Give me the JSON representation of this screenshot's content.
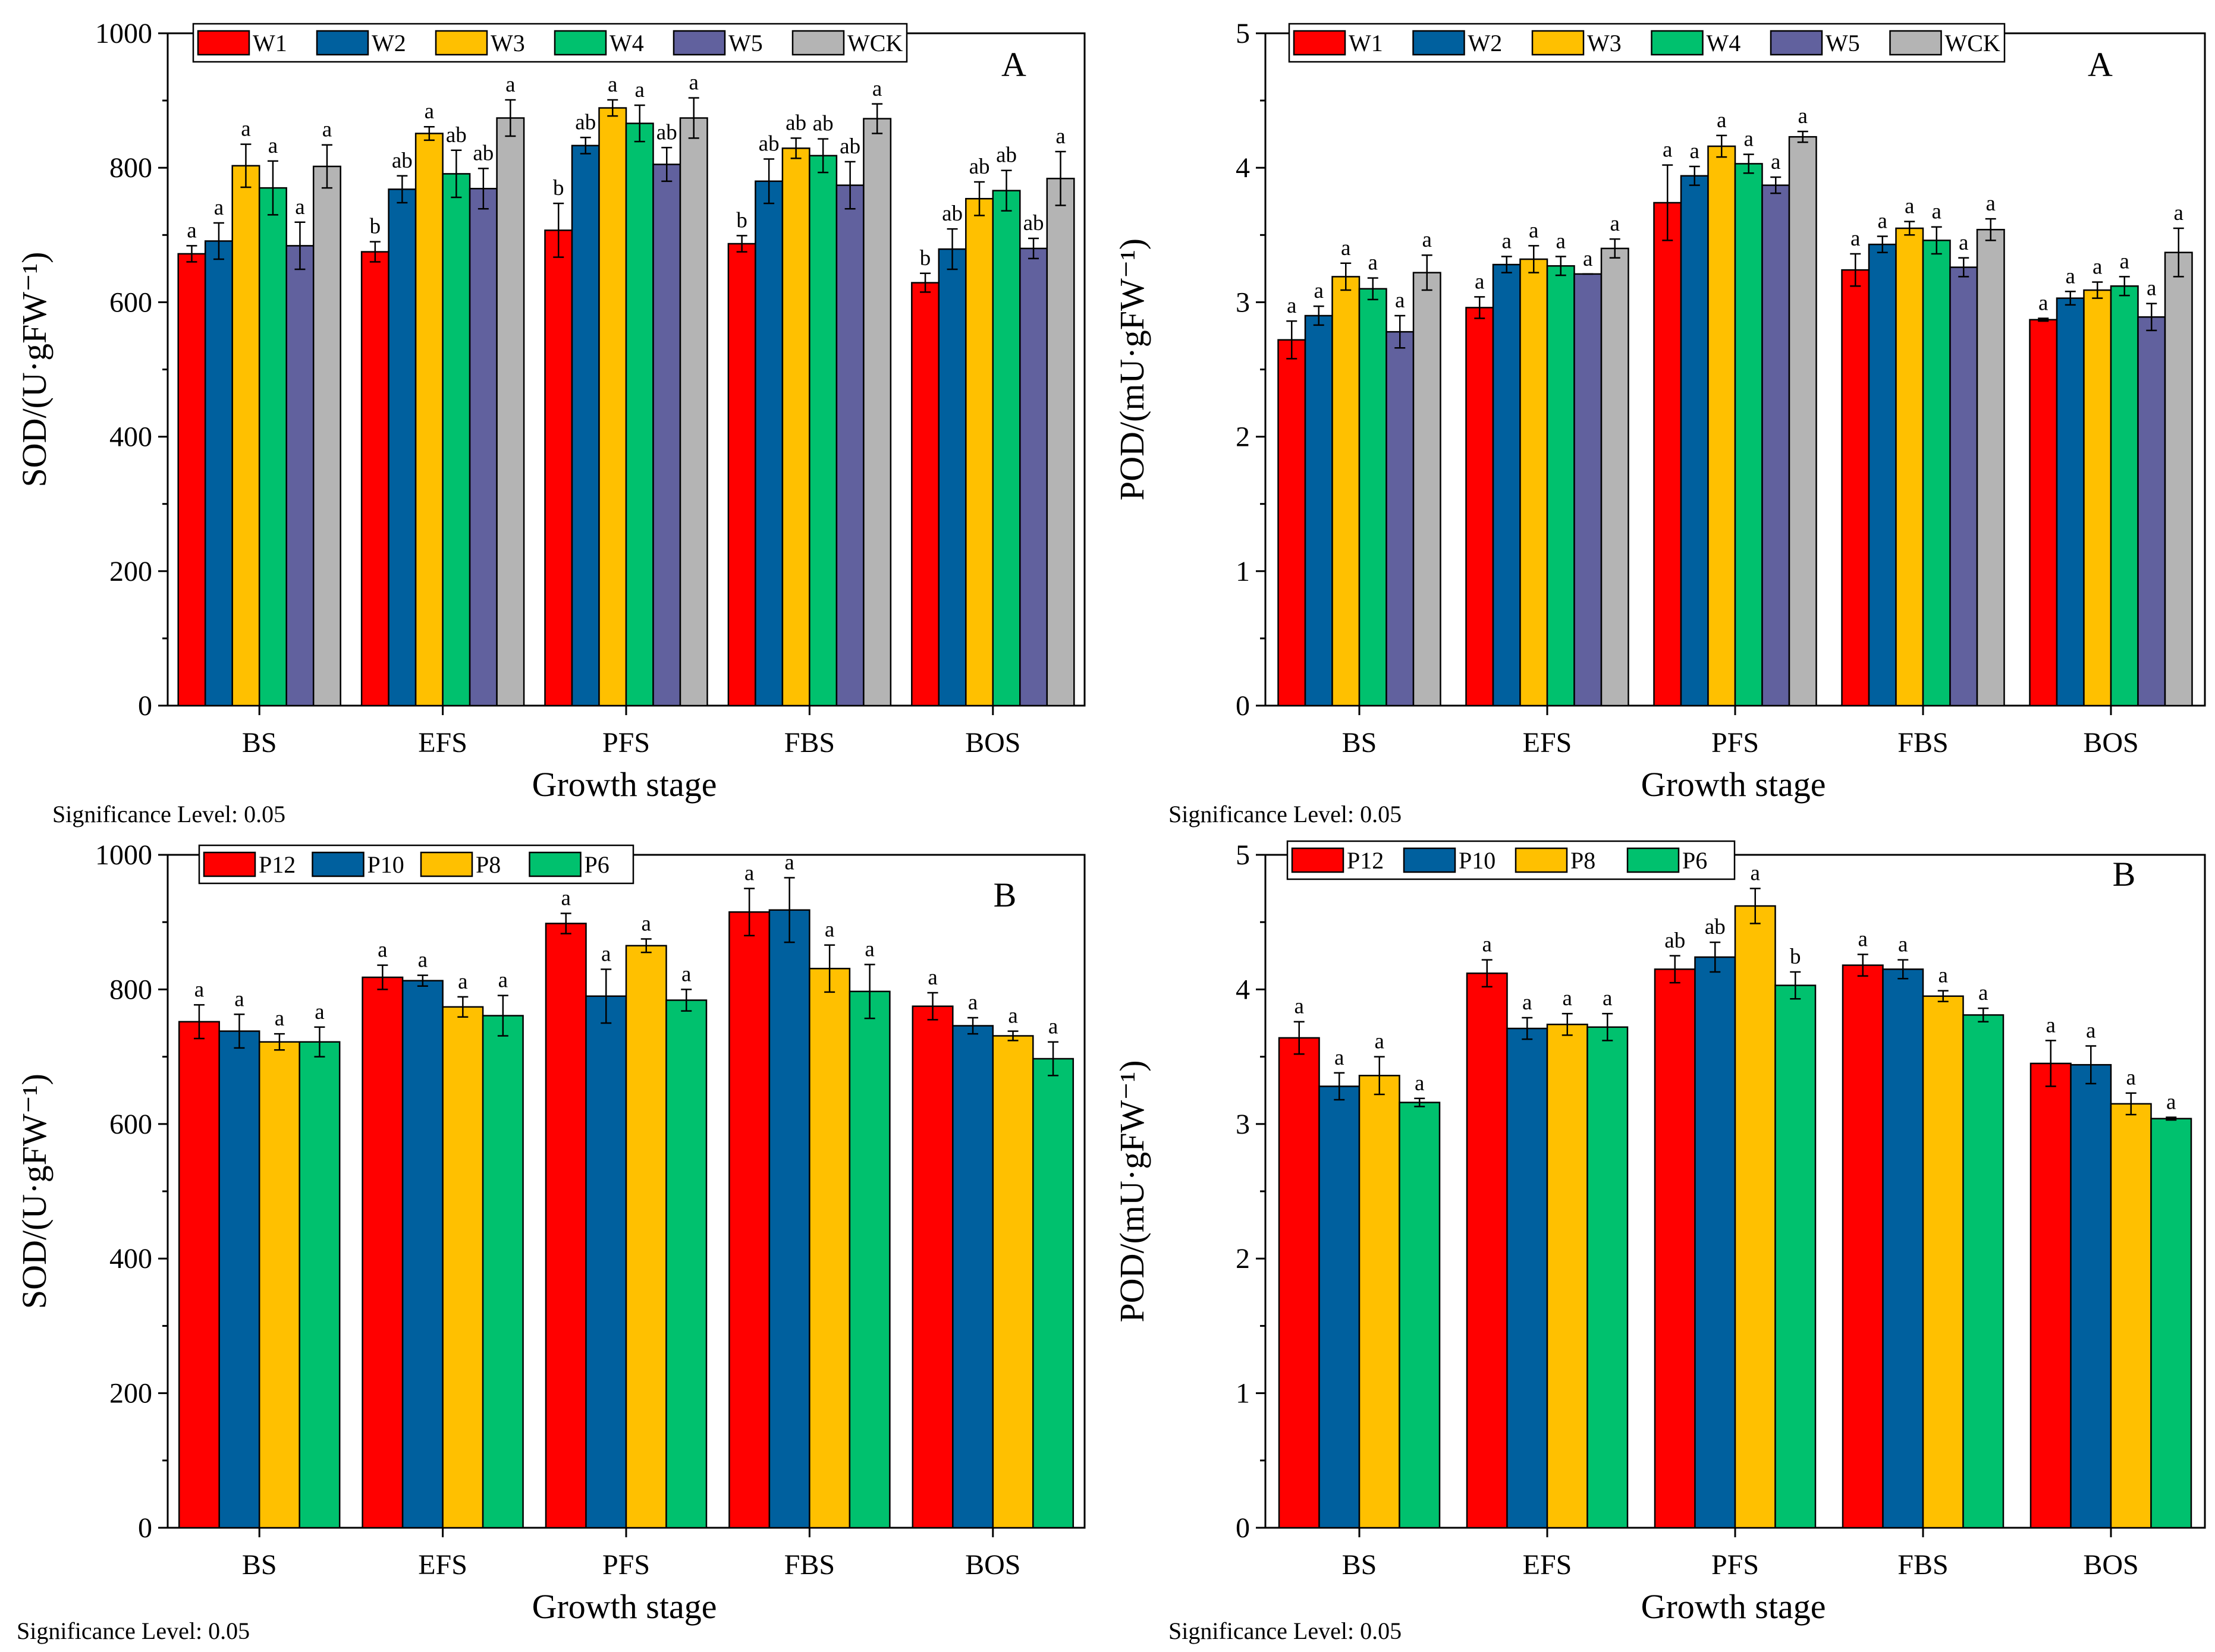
{
  "colors": {
    "W1": "#ff0000",
    "W2": "#00609e",
    "W3": "#ffc000",
    "W4": "#00c16e",
    "W5": "#61619e",
    "WCK": "#b4b4b4",
    "P12": "#ff0000",
    "P10": "#00609e",
    "P8": "#ffc000",
    "P6": "#00c16e"
  },
  "chart_data": [
    {
      "type": "bar",
      "panel_label": "A",
      "xlabel": "Growth stage",
      "ylabel": "SOD/(U·gFW⁻¹)",
      "ylim": [
        0,
        1000
      ],
      "yticks": [
        "0",
        "200",
        "400",
        "600",
        "800",
        "1000"
      ],
      "significance_note": "Significance Level: 0.05",
      "categories": [
        "BS",
        "EFS",
        "PFS",
        "FBS",
        "BOS"
      ],
      "legend": [
        "W1",
        "W2",
        "W3",
        "W4",
        "W5",
        "WCK"
      ],
      "series": [
        {
          "name": "W1",
          "values": [
            672,
            675,
            707,
            687,
            629
          ],
          "errors": [
            12,
            15,
            40,
            12,
            14
          ],
          "letters": [
            "a",
            "b",
            "b",
            "b",
            "b"
          ]
        },
        {
          "name": "W2",
          "values": [
            691,
            768,
            833,
            780,
            679
          ],
          "errors": [
            27,
            20,
            12,
            33,
            30
          ],
          "letters": [
            "a",
            "ab",
            "ab",
            "ab",
            "ab"
          ]
        },
        {
          "name": "W3",
          "values": [
            803,
            851,
            889,
            829,
            754
          ],
          "errors": [
            32,
            10,
            12,
            15,
            25
          ],
          "letters": [
            "a",
            "a",
            "a",
            "ab",
            "ab"
          ]
        },
        {
          "name": "W4",
          "values": [
            770,
            791,
            866,
            818,
            766
          ],
          "errors": [
            40,
            35,
            27,
            25,
            30
          ],
          "letters": [
            "a",
            "ab",
            "a",
            "ab",
            "ab"
          ]
        },
        {
          "name": "W5",
          "values": [
            684,
            769,
            805,
            774,
            680
          ],
          "errors": [
            35,
            30,
            25,
            35,
            15
          ],
          "letters": [
            "a",
            "ab",
            "ab",
            "ab",
            "ab"
          ]
        },
        {
          "name": "WCK",
          "values": [
            802,
            874,
            874,
            873,
            784
          ],
          "errors": [
            32,
            27,
            30,
            22,
            40
          ],
          "letters": [
            "a",
            "a",
            "a",
            "a",
            "a"
          ]
        }
      ]
    },
    {
      "type": "bar",
      "panel_label": "A",
      "xlabel": "Growth stage",
      "ylabel": "POD/(mU·gFW⁻¹)",
      "ylim": [
        0,
        5
      ],
      "yticks": [
        "0",
        "1",
        "2",
        "3",
        "4",
        "5"
      ],
      "significance_note": "Significance Level: 0.05",
      "categories": [
        "BS",
        "EFS",
        "PFS",
        "FBS",
        "BOS"
      ],
      "legend": [
        "W1",
        "W2",
        "W3",
        "W4",
        "W5",
        "WCK"
      ],
      "series": [
        {
          "name": "W1",
          "values": [
            2.72,
            2.96,
            3.74,
            3.24,
            2.87
          ],
          "errors": [
            0.14,
            0.08,
            0.28,
            0.12,
            0.01
          ],
          "letters": [
            "a",
            "a",
            "a",
            "a",
            "a"
          ]
        },
        {
          "name": "W2",
          "values": [
            2.9,
            3.28,
            3.94,
            3.43,
            3.03
          ],
          "errors": [
            0.07,
            0.06,
            0.07,
            0.06,
            0.05
          ],
          "letters": [
            "a",
            "a",
            "a",
            "a",
            "a"
          ]
        },
        {
          "name": "W3",
          "values": [
            3.19,
            3.32,
            4.16,
            3.55,
            3.09
          ],
          "errors": [
            0.1,
            0.1,
            0.08,
            0.05,
            0.06
          ],
          "letters": [
            "a",
            "a",
            "a",
            "a",
            "a"
          ]
        },
        {
          "name": "W4",
          "values": [
            3.1,
            3.27,
            4.03,
            3.46,
            3.12
          ],
          "errors": [
            0.08,
            0.07,
            0.07,
            0.1,
            0.07
          ],
          "letters": [
            "a",
            "a",
            "a",
            "a",
            "a"
          ]
        },
        {
          "name": "W5",
          "values": [
            2.78,
            3.21,
            3.87,
            3.26,
            2.89
          ],
          "errors": [
            0.12,
            0.0,
            0.06,
            0.07,
            0.1
          ],
          "letters": [
            "a",
            "a",
            "a",
            "a",
            "a"
          ]
        },
        {
          "name": "WCK",
          "values": [
            3.22,
            3.4,
            4.23,
            3.54,
            3.37
          ],
          "errors": [
            0.13,
            0.07,
            0.04,
            0.08,
            0.18
          ],
          "letters": [
            "a",
            "a",
            "a",
            "a",
            "a"
          ]
        }
      ]
    },
    {
      "type": "bar",
      "panel_label": "B",
      "xlabel": "Growth stage",
      "ylabel": "SOD/(U·gFW⁻¹)",
      "ylim": [
        0,
        1000
      ],
      "yticks": [
        "0",
        "200",
        "400",
        "600",
        "800",
        "1000"
      ],
      "significance_note": "Significance Level: 0.05",
      "categories": [
        "BS",
        "EFS",
        "PFS",
        "FBS",
        "BOS"
      ],
      "legend": [
        "P12",
        "P10",
        "P8",
        "P6"
      ],
      "series": [
        {
          "name": "P12",
          "values": [
            752,
            818,
            898,
            915,
            775
          ],
          "errors": [
            25,
            18,
            15,
            35,
            20
          ],
          "letters": [
            "a",
            "a",
            "a",
            "a",
            "a"
          ]
        },
        {
          "name": "P10",
          "values": [
            738,
            813,
            790,
            918,
            746
          ],
          "errors": [
            25,
            8,
            40,
            48,
            12
          ],
          "letters": [
            "a",
            "a",
            "a",
            "a",
            "a"
          ]
        },
        {
          "name": "P8",
          "values": [
            722,
            774,
            865,
            831,
            731
          ],
          "errors": [
            12,
            15,
            10,
            35,
            7
          ],
          "letters": [
            "a",
            "a",
            "a",
            "a",
            "a"
          ]
        },
        {
          "name": "P6",
          "values": [
            722,
            761,
            784,
            797,
            697
          ],
          "errors": [
            22,
            30,
            16,
            40,
            25
          ],
          "letters": [
            "a",
            "a",
            "a",
            "a",
            "a"
          ]
        }
      ]
    },
    {
      "type": "bar",
      "panel_label": "B",
      "xlabel": "Growth stage",
      "ylabel": "POD/(mU·gFW⁻¹)",
      "ylim": [
        0,
        5
      ],
      "yticks": [
        "0",
        "1",
        "2",
        "3",
        "4",
        "5"
      ],
      "significance_note": "Significance Level: 0.05",
      "categories": [
        "BS",
        "EFS",
        "PFS",
        "FBS",
        "BOS"
      ],
      "legend": [
        "P12",
        "P10",
        "P8",
        "P6"
      ],
      "series": [
        {
          "name": "P12",
          "values": [
            3.64,
            4.12,
            4.15,
            4.18,
            3.45
          ],
          "errors": [
            0.12,
            0.1,
            0.1,
            0.08,
            0.17
          ],
          "letters": [
            "a",
            "a",
            "ab",
            "a",
            "a"
          ]
        },
        {
          "name": "P10",
          "values": [
            3.28,
            3.71,
            4.24,
            4.15,
            3.44
          ],
          "errors": [
            0.1,
            0.08,
            0.11,
            0.07,
            0.14
          ],
          "letters": [
            "a",
            "a",
            "ab",
            "a",
            "a"
          ]
        },
        {
          "name": "P8",
          "values": [
            3.36,
            3.74,
            4.62,
            3.95,
            3.15
          ],
          "errors": [
            0.14,
            0.08,
            0.13,
            0.04,
            0.08
          ],
          "letters": [
            "a",
            "a",
            "a",
            "a",
            "a"
          ]
        },
        {
          "name": "P6",
          "values": [
            3.16,
            3.72,
            4.03,
            3.81,
            3.04
          ],
          "errors": [
            0.03,
            0.1,
            0.1,
            0.05,
            0.01
          ],
          "letters": [
            "a",
            "a",
            "b",
            "a",
            "a"
          ]
        }
      ]
    }
  ]
}
